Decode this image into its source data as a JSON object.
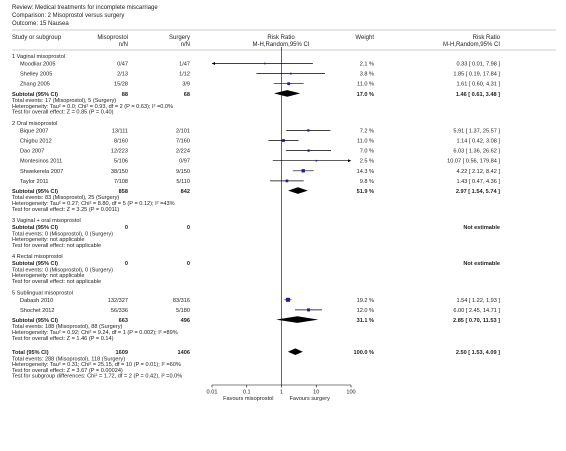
{
  "header": {
    "review": "Review:  Medical treatments for incomplete miscarriage",
    "comparison": "Comparison:  2 Misoprostol versus surgery",
    "outcome": "Outcome:  15 Nausea"
  },
  "columns": {
    "study": "Study or subgroup",
    "miso": "Misoprostol",
    "miso_sub": "n/N",
    "surg": "Surgery",
    "surg_sub": "n/N",
    "rr": "Risk Ratio",
    "rr_sub": "M-H,Random,95% CI",
    "weight": "Weight",
    "rr2": "Risk Ratio",
    "rr2_sub": "M-H,Random,95% CI"
  },
  "chart_data": {
    "type": "forest",
    "axis": {
      "scale": "log",
      "ticks": [
        0.01,
        0.1,
        1,
        10,
        100
      ],
      "tick_labels": [
        "0.01",
        "0.1",
        "1",
        "10",
        "100"
      ],
      "left_label": "Favours misoprostol",
      "right_label": "Favours surgery"
    },
    "groups": [
      {
        "title": "1 Vaginal misoprostol",
        "studies": [
          {
            "name": "Moodliar 2005",
            "miso": "0/47",
            "surg": "1/47",
            "weight": "2.1 %",
            "ci_text": "0.33 [ 0.01, 7.98 ]",
            "rr": 0.33,
            "lo": 0.01,
            "hi": 7.98,
            "arrow_left": true
          },
          {
            "name": "Shelley 2005",
            "miso": "2/13",
            "surg": "1/12",
            "weight": "3.8 %",
            "ci_text": "1.85 [ 0.19, 17.84 ]",
            "rr": 1.85,
            "lo": 0.19,
            "hi": 17.84
          },
          {
            "name": "Zhang 2005",
            "miso": "15/28",
            "surg": "3/9",
            "weight": "11.0 %",
            "ci_text": "1.61 [ 0.60, 4.31 ]",
            "rr": 1.61,
            "lo": 0.6,
            "hi": 4.31
          }
        ],
        "subtotal": {
          "label": "Subtotal (95% CI)",
          "miso": "88",
          "surg": "68",
          "weight": "17.0 %",
          "ci_text": "1.46 [ 0.61, 3.48 ]",
          "rr": 1.46,
          "lo": 0.61,
          "hi": 3.48
        },
        "notes": [
          "Total events: 17 (Misoprostol), 5 (Surgery)",
          "Heterogeneity: Tau² = 0.0; Chi² = 0.93, df = 2 (P = 0.63); I² =0.0%",
          "Test for overall effect: Z = 0.85 (P = 0.40)"
        ]
      },
      {
        "title": "2 Oral misoprostol",
        "studies": [
          {
            "name": "Bique 2007",
            "miso": "13/111",
            "surg": "2/101",
            "weight": "7.2 %",
            "ci_text": "5.91 [ 1.37, 25.57 ]",
            "rr": 5.91,
            "lo": 1.37,
            "hi": 25.57
          },
          {
            "name": "Chigbu 2012",
            "miso": "8/160",
            "surg": "7/160",
            "weight": "11.0 %",
            "ci_text": "1.14 [ 0.42, 3.08 ]",
            "rr": 1.14,
            "lo": 0.42,
            "hi": 3.08
          },
          {
            "name": "Dao 2007",
            "miso": "12/223",
            "surg": "2/224",
            "weight": "7.0 %",
            "ci_text": "6.03 [ 1.36, 26.62 ]",
            "rr": 6.03,
            "lo": 1.36,
            "hi": 26.62
          },
          {
            "name": "Montesinos 2011",
            "miso": "5/106",
            "surg": "0/97",
            "weight": "2.5 %",
            "ci_text": "10.07 [ 0.56, 179.84 ]",
            "rr": 10.07,
            "lo": 0.56,
            "hi": 179.84,
            "arrow_right": true
          },
          {
            "name": "Shwekerela 2007",
            "miso": "38/150",
            "surg": "9/150",
            "weight": "14.3 %",
            "ci_text": "4.22 [ 2.12, 8.42 ]",
            "rr": 4.22,
            "lo": 2.12,
            "hi": 8.42
          },
          {
            "name": "Taylor 2011",
            "miso": "7/108",
            "surg": "5/110",
            "weight": "9.8 %",
            "ci_text": "1.43 [ 0.47, 4.36 ]",
            "rr": 1.43,
            "lo": 0.47,
            "hi": 4.36
          }
        ],
        "subtotal": {
          "label": "Subtotal (95% CI)",
          "miso": "858",
          "surg": "842",
          "weight": "51.9 %",
          "ci_text": "2.97 [ 1.54, 5.74 ]",
          "rr": 2.97,
          "lo": 1.54,
          "hi": 5.74
        },
        "notes": [
          "Total events: 83 (Misoprostol), 25 (Surgery)",
          "Heterogeneity: Tau² = 0.27; Chi² = 8.80, df = 5 (P = 0.12); I² =43%",
          "Test for overall effect: Z = 3.25 (P = 0.0011)"
        ]
      },
      {
        "title": "3 Vaginal + oral misoprostol",
        "studies": [],
        "subtotal": {
          "label": "Subtotal (95% CI)",
          "miso": "0",
          "surg": "0",
          "weight": "",
          "ci_text": "Not estimable"
        },
        "notes": [
          "Total events: 0 (Misoprostol), 0 (Surgery)",
          "Heterogeneity: not applicable",
          "Test for overall effect: not applicable"
        ]
      },
      {
        "title": "4 Rectal misoprostol",
        "studies": [],
        "subtotal": {
          "label": "Subtotal (95% CI)",
          "miso": "0",
          "surg": "0",
          "weight": "",
          "ci_text": "Not estimable"
        },
        "notes": [
          "Total events: 0 (Misoprostol), 0 (Surgery)",
          "Heterogeneity: not applicable",
          "Test for overall effect: not applicable"
        ]
      },
      {
        "title": "5 Sublingual misoprostol",
        "studies": [
          {
            "name": "Dabash 2010",
            "miso": "132/327",
            "surg": "83/316",
            "weight": "19.2 %",
            "ci_text": "1.54 [ 1.22, 1.93 ]",
            "rr": 1.54,
            "lo": 1.22,
            "hi": 1.93
          },
          {
            "name": "Shochet 2012",
            "miso": "56/336",
            "surg": "5/180",
            "weight": "12.0 %",
            "ci_text": "6.00 [ 2.45, 14.71 ]",
            "rr": 6.0,
            "lo": 2.45,
            "hi": 14.71
          }
        ],
        "subtotal": {
          "label": "Subtotal (95% CI)",
          "miso": "663",
          "surg": "496",
          "weight": "31.1 %",
          "ci_text": "2.85 [ 0.70, 11.53 ]",
          "rr": 2.85,
          "lo": 0.7,
          "hi": 11.53
        },
        "notes": [
          "Total events: 188 (Misoprostol), 88 (Surgery)",
          "Heterogeneity: Tau² = 0.92; Chi² = 9.24, df = 1 (P = 0.002); I² =89%",
          "Test for overall effect: Z = 1.46 (P = 0.14)"
        ]
      }
    ],
    "total": {
      "label": "Total (95% CI)",
      "miso": "1609",
      "surg": "1406",
      "weight": "100.0 %",
      "ci_text": "2.50 [ 1.53, 4.09 ]",
      "rr": 2.5,
      "lo": 1.53,
      "hi": 4.09
    },
    "total_notes": [
      "Total events: 288 (Misoprostol), 118 (Surgery)",
      "Heterogeneity: Tau² = 0.31; Chi² = 25.15, df = 10 (P = 0.01); I² =60%",
      "Test for overall effect: Z = 3.67 (P = 0.00024)",
      "Test for subgroup differences: Chi² = 1.72, df = 2 (P = 0.42), I² =0.0%"
    ]
  },
  "colors": {
    "marker": "#1d1d9e",
    "diamond": "#000000",
    "line": "#000000",
    "separator": "#999999"
  }
}
